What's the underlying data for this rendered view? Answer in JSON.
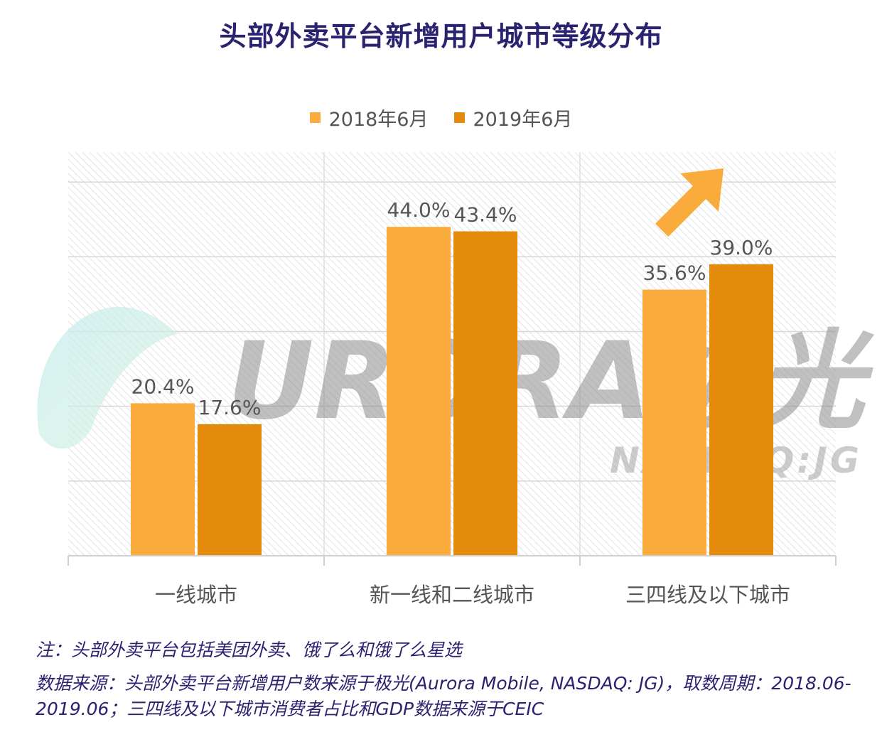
{
  "title": "头部外卖平台新增用户城市等级分布",
  "legend": [
    {
      "label": "2018年6月",
      "color": "#F9AC3B"
    },
    {
      "label": "2019年6月",
      "color": "#E58B0C"
    }
  ],
  "chart_data": {
    "type": "bar",
    "title": "头部外卖平台新增用户城市等级分布",
    "categories": [
      "一线城市",
      "新一线和二线城市",
      "三四线及以下城市"
    ],
    "series": [
      {
        "name": "2018年6月",
        "values": [
          20.4,
          44.0,
          35.6
        ],
        "labels": [
          "20.4%",
          "44.0%",
          "35.6%"
        ],
        "color": "#F9AC3B"
      },
      {
        "name": "2019年6月",
        "values": [
          17.6,
          43.4,
          39.0
        ],
        "labels": [
          "17.6%",
          "43.4%",
          "39.0%"
        ],
        "color": "#E58B0C"
      }
    ],
    "ylim": [
      0,
      54
    ],
    "y_gridlines": [
      0,
      10,
      20,
      30,
      40,
      50
    ],
    "grid": true,
    "legend_position": "top",
    "background": "hatched",
    "annotation": "up-arrow-icon"
  },
  "watermark": {
    "text": "URORA极光",
    "subtext": "NASDAQ:JG"
  },
  "notes": {
    "note": "注：头部外卖平台包括美团外卖、饿了么和饿了么星选",
    "source": "数据来源：头部外卖平台新增用户数来源于极光(Aurora Mobile, NASDAQ: JG)，取数周期：2018.06-2019.06；三四线及以下城市消费者占比和GDP数据来源于CEIC"
  }
}
